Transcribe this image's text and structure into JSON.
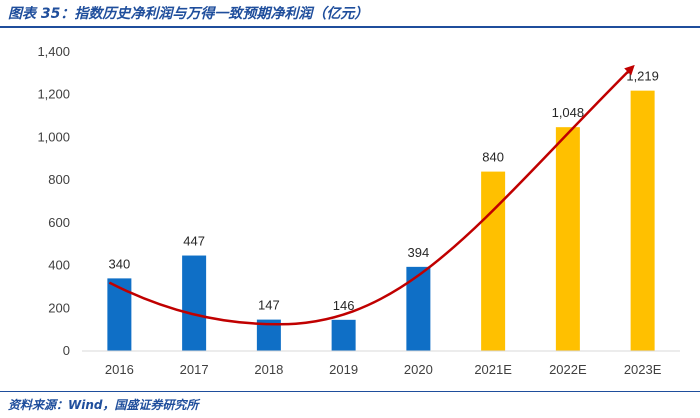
{
  "title": "图表 35：指数历史净利润与万得一致预期净利润（亿元）",
  "source": "资料来源：Wind，国盛证券研究所",
  "chart_data": {
    "type": "bar",
    "categories": [
      "2016",
      "2017",
      "2018",
      "2019",
      "2020",
      "2021E",
      "2022E",
      "2023E"
    ],
    "values": [
      340,
      447,
      147,
      146,
      394,
      840,
      1048,
      1219
    ],
    "value_labels": [
      "340",
      "447",
      "147",
      "146",
      "394",
      "840",
      "1,048",
      "1,219"
    ],
    "bar_colors": [
      "#0f6fc6",
      "#0f6fc6",
      "#0f6fc6",
      "#0f6fc6",
      "#0f6fc6",
      "#ffc000",
      "#ffc000",
      "#ffc000"
    ],
    "ylim": [
      0,
      1400
    ],
    "yticks": [
      0,
      200,
      400,
      600,
      800,
      1000,
      1200,
      1400
    ],
    "ytick_labels": [
      "0",
      "200",
      "400",
      "600",
      "800",
      "1,000",
      "1,200",
      "1,400"
    ],
    "trend_arrow_color": "#c00000",
    "grid": false,
    "xlabel": "",
    "ylabel": ""
  }
}
